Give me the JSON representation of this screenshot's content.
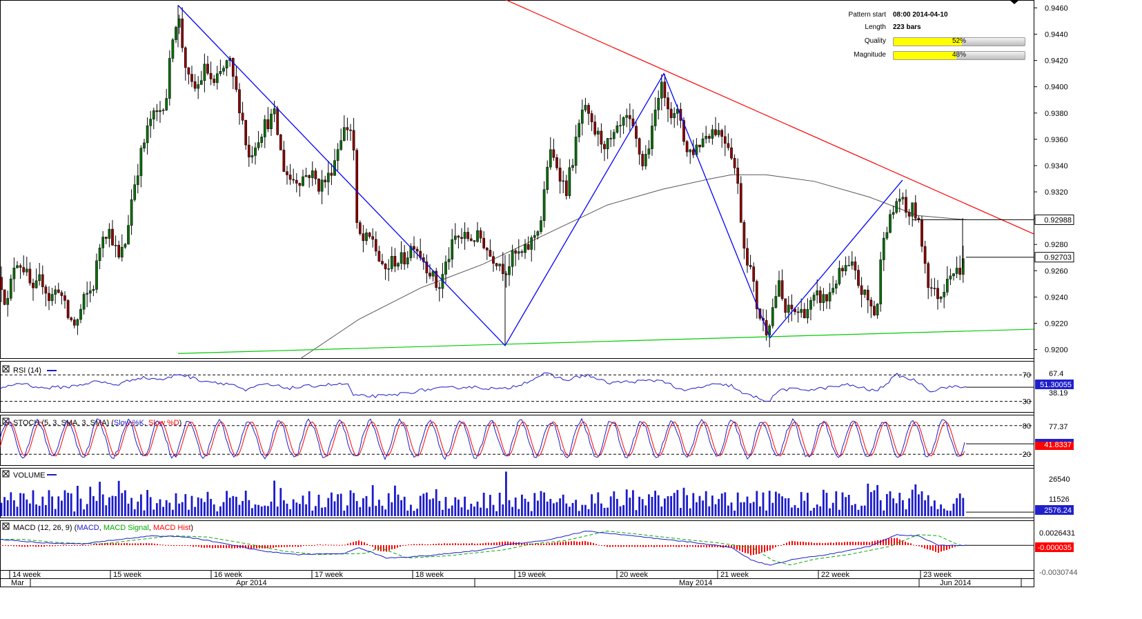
{
  "info_panel": {
    "pattern_start_label": "Pattern start",
    "pattern_start_value": "08:00 2014-04-10",
    "length_label": "Length",
    "length_value": "223 bars",
    "quality_label": "Quality",
    "quality_value": "52%",
    "quality_fraction": 0.52,
    "magnitude_label": "Magnitude",
    "magnitude_value": "48%",
    "magnitude_fraction": 0.48
  },
  "price_badges": {
    "upper": "0.92988",
    "current": "0.92703"
  },
  "price_axis_ticks": [
    "0.9460",
    "0.9440",
    "0.9420",
    "0.9400",
    "0.9380",
    "0.9360",
    "0.9340",
    "0.9320",
    "0.9300",
    "0.9280",
    "0.9260",
    "0.9240",
    "0.9220",
    "0.9200"
  ],
  "indicators": {
    "rsi": {
      "title": "RSI (14)",
      "levels": [
        "70",
        "67.4",
        "30",
        "38.19"
      ],
      "badge": "51.30055"
    },
    "stoch": {
      "title_prefix": "STOCH (5, 3, SMA, 3, SMA) (",
      "k_label": "Slow %K",
      "sep": ", ",
      "d_label": "Slow %D",
      "title_suffix": ")",
      "levels": [
        "80",
        "77.37",
        "20"
      ],
      "badge": "41.8337"
    },
    "volume": {
      "title": "VOLUME",
      "levels": [
        "26540",
        "11526"
      ],
      "badge": "2576.24"
    },
    "macd": {
      "title_prefix": "MACD (12, 26, 9) (",
      "macd_label": "MACD",
      "sep1": ", ",
      "signal_label": "MACD Signal",
      "sep2": ", ",
      "hist_label": "MACD Hist",
      "title_suffix": ")",
      "levels": [
        "0.0026431",
        "-0.000035",
        "-0.0030744"
      ],
      "badge": "-0.000035"
    }
  },
  "time_axis": {
    "weeks": [
      "14 week",
      "15 week",
      "16 week",
      "17 week",
      "18 week",
      "19 week",
      "20 week",
      "21 week",
      "22 week",
      "23 week"
    ],
    "months": [
      "Mar",
      "Apr 2014",
      "May 2014",
      "Jun 2014"
    ]
  },
  "colors": {
    "bull": "#0a6e0a",
    "bear": "#8b0000",
    "resistance": "#ff0000",
    "support": "#00cc00",
    "zigzag": "#0000ff",
    "ma": "#555555",
    "blue": "#1a1acc",
    "red": "#ff0000",
    "quality_fill": "#ffff00",
    "badge_bg": "#1f1fcc"
  },
  "chart_data": {
    "type": "candlestick",
    "instrument_timeframe": "4h",
    "y_range": [
      0.9194,
      0.9466
    ],
    "close_path": [
      [
        0,
        0.9255
      ],
      [
        10,
        0.9232
      ],
      [
        22,
        0.927
      ],
      [
        35,
        0.9262
      ],
      [
        48,
        0.9242
      ],
      [
        60,
        0.9255
      ],
      [
        72,
        0.9238
      ],
      [
        85,
        0.9248
      ],
      [
        98,
        0.9225
      ],
      [
        110,
        0.9218
      ],
      [
        122,
        0.9238
      ],
      [
        135,
        0.9248
      ],
      [
        148,
        0.929
      ],
      [
        160,
        0.929
      ],
      [
        172,
        0.9268
      ],
      [
        182,
        0.9282
      ],
      [
        192,
        0.932
      ],
      [
        205,
        0.935
      ],
      [
        218,
        0.9375
      ],
      [
        230,
        0.938
      ],
      [
        242,
        0.9395
      ],
      [
        250,
        0.944
      ],
      [
        258,
        0.9455
      ],
      [
        266,
        0.9425
      ],
      [
        275,
        0.94
      ],
      [
        285,
        0.9398
      ],
      [
        298,
        0.9415
      ],
      [
        310,
        0.94
      ],
      [
        320,
        0.941
      ],
      [
        332,
        0.942
      ],
      [
        340,
        0.94
      ],
      [
        350,
        0.938
      ],
      [
        360,
        0.9345
      ],
      [
        372,
        0.936
      ],
      [
        385,
        0.9372
      ],
      [
        398,
        0.9378
      ],
      [
        410,
        0.934
      ],
      [
        420,
        0.933
      ],
      [
        435,
        0.933
      ],
      [
        450,
        0.9335
      ],
      [
        462,
        0.9325
      ],
      [
        475,
        0.933
      ],
      [
        485,
        0.9345
      ],
      [
        495,
        0.9365
      ],
      [
        505,
        0.937
      ],
      [
        512,
        0.9365
      ],
      [
        515,
        0.9295
      ],
      [
        525,
        0.9282
      ],
      [
        540,
        0.9285
      ],
      [
        555,
        0.9258
      ],
      [
        570,
        0.9268
      ],
      [
        585,
        0.9268
      ],
      [
        600,
        0.9282
      ],
      [
        612,
        0.927
      ],
      [
        625,
        0.9258
      ],
      [
        635,
        0.9245
      ],
      [
        648,
        0.9268
      ],
      [
        660,
        0.9285
      ],
      [
        672,
        0.9285
      ],
      [
        685,
        0.9285
      ],
      [
        698,
        0.9285
      ],
      [
        710,
        0.9272
      ],
      [
        722,
        0.9268
      ],
      [
        732,
        0.926
      ],
      [
        745,
        0.9272
      ],
      [
        758,
        0.9272
      ],
      [
        770,
        0.9282
      ],
      [
        785,
        0.93
      ],
      [
        795,
        0.935
      ],
      [
        808,
        0.934
      ],
      [
        820,
        0.932
      ],
      [
        832,
        0.935
      ],
      [
        845,
        0.9385
      ],
      [
        858,
        0.9368
      ],
      [
        870,
        0.936
      ],
      [
        882,
        0.9355
      ],
      [
        895,
        0.9365
      ],
      [
        908,
        0.9375
      ],
      [
        918,
        0.9365
      ],
      [
        932,
        0.934
      ],
      [
        945,
        0.9365
      ],
      [
        955,
        0.94
      ],
      [
        965,
        0.9395
      ],
      [
        975,
        0.9375
      ],
      [
        985,
        0.938
      ],
      [
        995,
        0.935
      ],
      [
        1005,
        0.9352
      ],
      [
        1015,
        0.9358
      ],
      [
        1025,
        0.9365
      ],
      [
        1035,
        0.9368
      ],
      [
        1045,
        0.9365
      ],
      [
        1058,
        0.9355
      ],
      [
        1068,
        0.933
      ],
      [
        1078,
        0.928
      ],
      [
        1088,
        0.926
      ],
      [
        1098,
        0.923
      ],
      [
        1110,
        0.9215
      ],
      [
        1118,
        0.9228
      ],
      [
        1128,
        0.925
      ],
      [
        1138,
        0.9228
      ],
      [
        1148,
        0.923
      ],
      [
        1160,
        0.9228
      ],
      [
        1172,
        0.9232
      ],
      [
        1185,
        0.924
      ],
      [
        1198,
        0.9238
      ],
      [
        1210,
        0.9252
      ],
      [
        1222,
        0.926
      ],
      [
        1235,
        0.9262
      ],
      [
        1248,
        0.9245
      ],
      [
        1260,
        0.9235
      ],
      [
        1270,
        0.9225
      ],
      [
        1280,
        0.929
      ],
      [
        1292,
        0.93
      ],
      [
        1302,
        0.9318
      ],
      [
        1315,
        0.9302
      ],
      [
        1325,
        0.9308
      ],
      [
        1335,
        0.9285
      ],
      [
        1345,
        0.9252
      ],
      [
        1355,
        0.9242
      ],
      [
        1365,
        0.9242
      ],
      [
        1375,
        0.9262
      ],
      [
        1385,
        0.9258
      ],
      [
        1392,
        0.9262
      ],
      [
        1400,
        0.92703
      ]
    ],
    "pattern_lines": {
      "resistance": [
        [
          682,
          0.9478
        ],
        [
          1498,
          0.9288
        ]
      ],
      "support": [
        [
          258,
          0.9197
        ],
        [
          1498,
          0.92155
        ]
      ],
      "zigzag": [
        [
          258,
          0.9462
        ],
        [
          732,
          0.9203
        ],
        [
          962,
          0.941
        ],
        [
          1116,
          0.9209
        ],
        [
          1308,
          0.9329
        ]
      ],
      "moving_average": [
        [
          435,
          0.9193
        ],
        [
          520,
          0.9223
        ],
        [
          610,
          0.9247
        ],
        [
          700,
          0.9265
        ],
        [
          800,
          0.929
        ],
        [
          880,
          0.931
        ],
        [
          960,
          0.9322
        ],
        [
          1030,
          0.933
        ],
        [
          1060,
          0.9333
        ],
        [
          1110,
          0.9333
        ],
        [
          1180,
          0.9328
        ],
        [
          1260,
          0.9316
        ],
        [
          1330,
          0.9302
        ],
        [
          1400,
          0.92988
        ]
      ]
    },
    "rsi": [
      [
        0,
        50
      ],
      [
        30,
        58
      ],
      [
        60,
        50
      ],
      [
        100,
        52
      ],
      [
        140,
        60
      ],
      [
        170,
        55
      ],
      [
        200,
        66
      ],
      [
        240,
        63
      ],
      [
        258,
        72
      ],
      [
        290,
        62
      ],
      [
        340,
        55
      ],
      [
        355,
        45
      ],
      [
        380,
        56
      ],
      [
        420,
        50
      ],
      [
        470,
        55
      ],
      [
        505,
        56
      ],
      [
        512,
        38
      ],
      [
        560,
        38
      ],
      [
        620,
        48
      ],
      [
        680,
        52
      ],
      [
        730,
        48
      ],
      [
        760,
        58
      ],
      [
        790,
        72
      ],
      [
        820,
        62
      ],
      [
        850,
        70
      ],
      [
        880,
        58
      ],
      [
        920,
        60
      ],
      [
        960,
        62
      ],
      [
        990,
        45
      ],
      [
        1030,
        55
      ],
      [
        1060,
        54
      ],
      [
        1075,
        42
      ],
      [
        1100,
        35
      ],
      [
        1115,
        30
      ],
      [
        1130,
        48
      ],
      [
        1180,
        48
      ],
      [
        1230,
        55
      ],
      [
        1270,
        45
      ],
      [
        1300,
        70
      ],
      [
        1330,
        60
      ],
      [
        1350,
        45
      ],
      [
        1370,
        52
      ],
      [
        1400,
        51.3
      ]
    ],
    "stoch_cycles": 32,
    "stoch_last": 41.8337,
    "volume_axis_max": 30000,
    "volume_last": 2576.24,
    "macd_last": -3.5e-05
  }
}
